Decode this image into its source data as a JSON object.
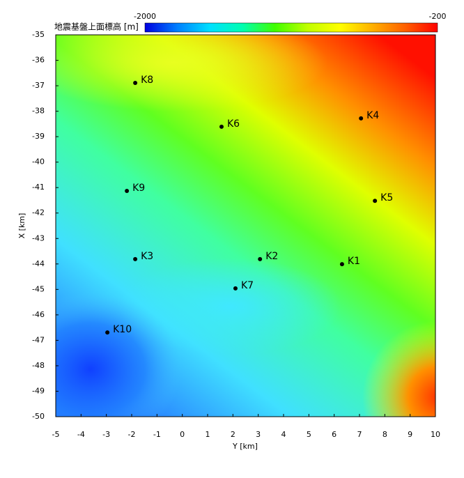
{
  "chart_data": {
    "type": "scatter",
    "title": "地震基盤上面標高 [m]",
    "xlabel": "Y [km]",
    "ylabel": "X [km]",
    "labels": [
      "K1",
      "K2",
      "K3",
      "K4",
      "K5",
      "K6",
      "K7",
      "K8",
      "K9",
      "K10"
    ],
    "x": [
      6.31,
      3.07,
      -1.86,
      7.06,
      7.61,
      1.55,
      2.1,
      -1.86,
      -2.19,
      -2.96
    ],
    "y": [
      -44.01,
      -43.81,
      -43.81,
      -38.28,
      -41.52,
      -38.61,
      -44.96,
      -36.89,
      -41.13,
      -46.69
    ],
    "color": "#000000",
    "xlim": [
      -5,
      10
    ],
    "xticks": [
      -5,
      -4,
      -3,
      -2,
      -1,
      0,
      1,
      2,
      3,
      4,
      5,
      6,
      7,
      8,
      9,
      10
    ],
    "ylim": [
      -50,
      -35
    ],
    "yticks": [
      -35,
      -36,
      -37,
      -38,
      -39,
      -40,
      -41,
      -42,
      -43,
      -44,
      -45,
      -46,
      -47,
      -48,
      -49,
      -50
    ],
    "colorbar": {
      "lim": [
        -2000,
        -200
      ],
      "ticks": [
        -2000,
        -200
      ],
      "colormap": [
        "#0000e0",
        "#0080ff",
        "#00e0ff",
        "#00ffb0",
        "#40ff00",
        "#c0ff00",
        "#ffff00",
        "#ffb000",
        "#ff6000",
        "#ff0000"
      ]
    }
  }
}
